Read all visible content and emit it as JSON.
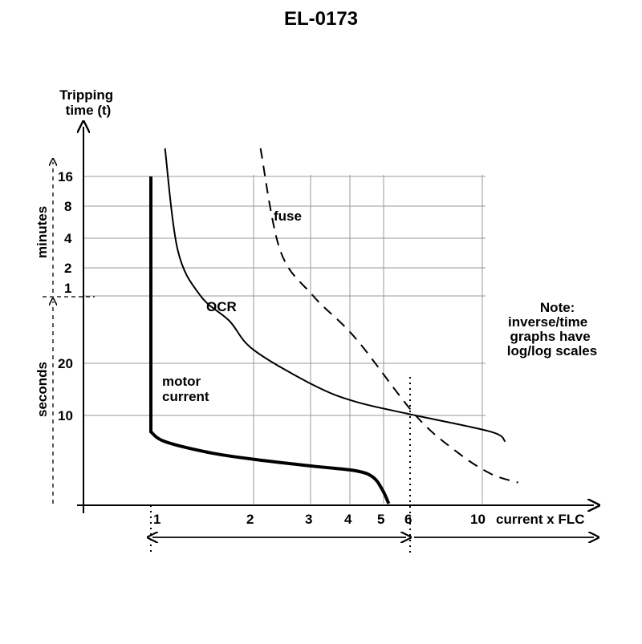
{
  "title": "EL-0173",
  "chart_data": {
    "type": "line",
    "x_scale": "log",
    "y_scale": "log",
    "xlabel": "current x FLC",
    "ylabel": "Tripping time (t)",
    "y_unit_minutes": "minutes",
    "y_unit_seconds": "seconds",
    "x_ticks": [
      "1",
      "2",
      "3",
      "4",
      "5",
      "6",
      "10"
    ],
    "y_ticks_minutes": [
      "16",
      "8",
      "4",
      "2",
      "1"
    ],
    "y_ticks_seconds": [
      "20",
      "10"
    ],
    "grid": true,
    "series": [
      {
        "name": "motor current",
        "style": "thick-solid",
        "x": [
          1,
          1,
          1.1,
          1.5,
          2,
          3,
          4,
          4.5,
          4.8,
          5
        ],
        "y": [
          "16 min",
          "8 s",
          "7 s",
          "6 s",
          "5.5 s",
          "5 s",
          "4.7 s",
          "4.3 s",
          "3.6 s",
          "3 s"
        ]
      },
      {
        "name": "OCR",
        "style": "solid",
        "x": [
          1.1,
          1.2,
          1.4,
          1.7,
          2,
          3,
          4,
          6,
          10,
          11
        ],
        "y": [
          "20 min",
          "3 min",
          "1 min",
          "40 s",
          "25 s",
          "15 s",
          "12 s",
          "10 s",
          "8 s",
          "7 s"
        ]
      },
      {
        "name": "fuse",
        "style": "dashed",
        "x": [
          2.1,
          2.4,
          3,
          4,
          6,
          8,
          10,
          12
        ],
        "y": [
          "20 min",
          "3 min",
          "1 min",
          "30 s",
          "10 s",
          "6 s",
          "4.5 s",
          "4 s"
        ]
      }
    ],
    "annotations": [
      "Note:",
      "inverse/time",
      "graphs have",
      "log/log scales"
    ]
  }
}
